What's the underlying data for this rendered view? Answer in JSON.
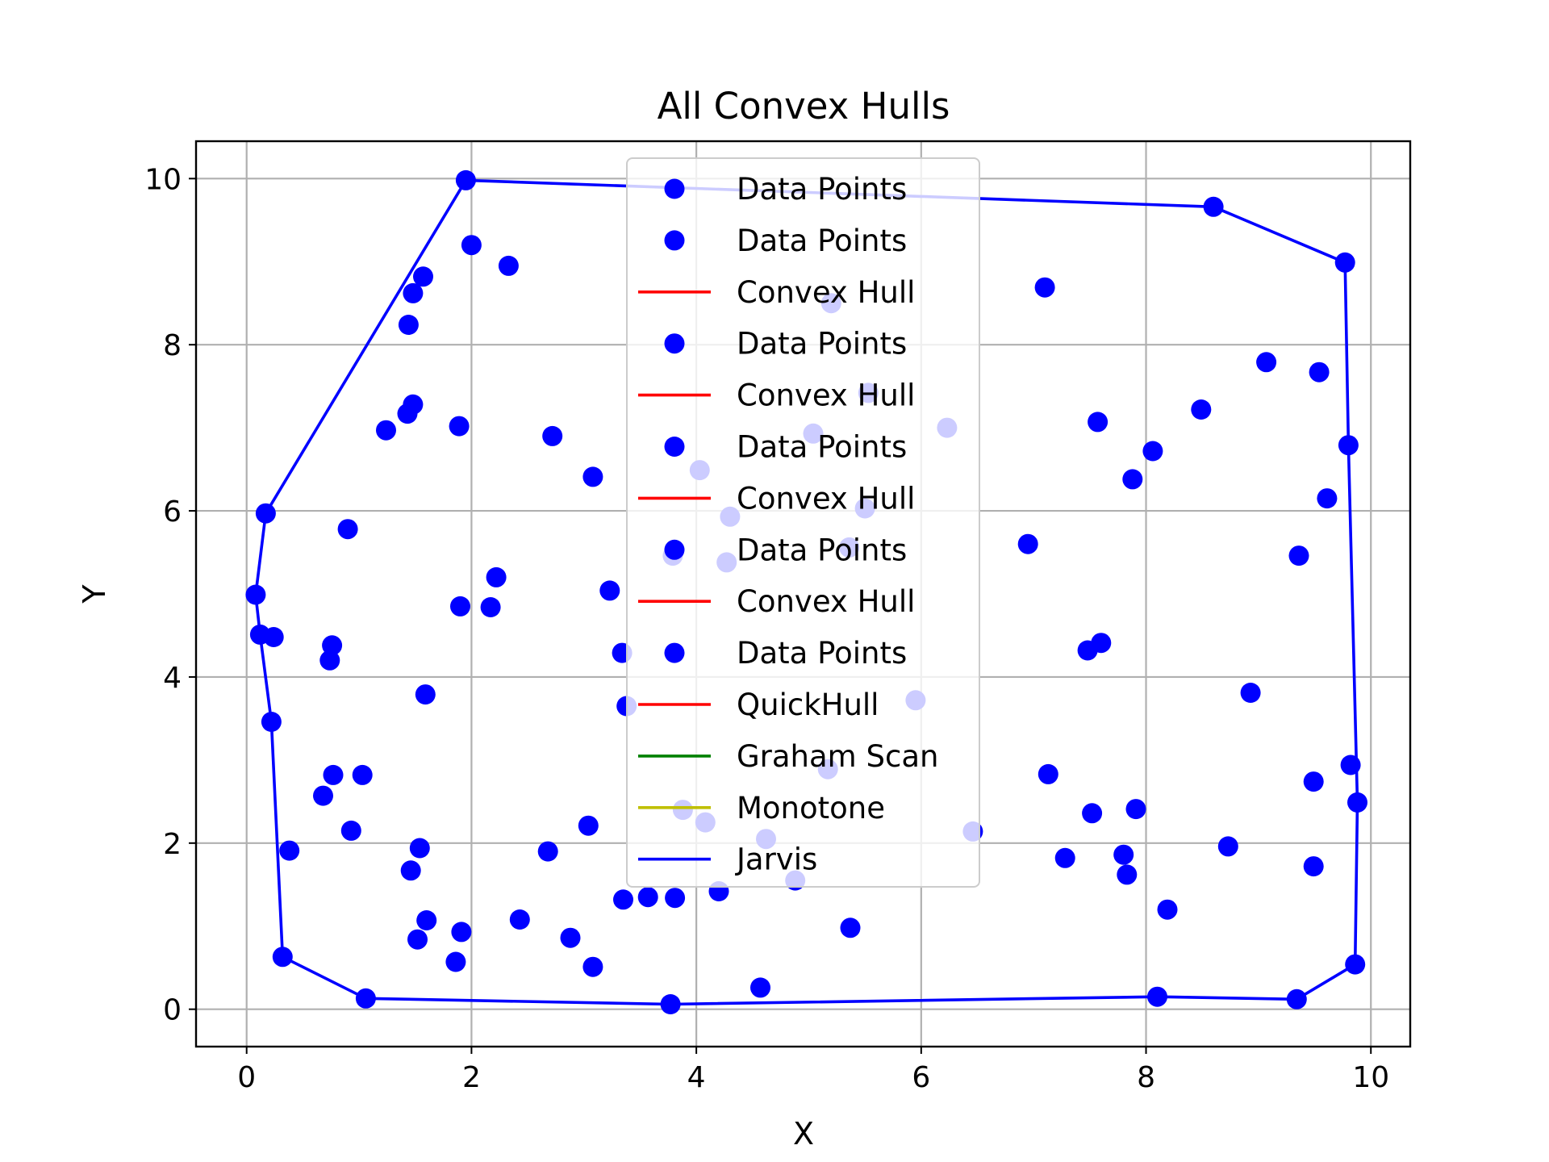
{
  "chart_data": {
    "type": "scatter",
    "title": "All Convex Hulls",
    "xlabel": "X",
    "ylabel": "Y",
    "xlim": [
      -0.45,
      10.35
    ],
    "ylim": [
      -0.45,
      10.45
    ],
    "grid": true,
    "legend_placement": "upper center",
    "xticks": [
      "0",
      "2",
      "4",
      "6",
      "8",
      "10"
    ],
    "yticks": [
      "0",
      "2",
      "4",
      "6",
      "8",
      "10"
    ],
    "colors": {
      "points": "#0000ff",
      "quickhull": "#ff0000",
      "graham": "#008000",
      "monotone": "#bfbf00",
      "jarvis": "#0000ff"
    },
    "points": [
      [
        1.95,
        9.98
      ],
      [
        2.0,
        9.2
      ],
      [
        2.33,
        8.95
      ],
      [
        1.57,
        8.82
      ],
      [
        1.48,
        8.62
      ],
      [
        1.44,
        8.24
      ],
      [
        1.48,
        7.28
      ],
      [
        1.43,
        7.17
      ],
      [
        1.24,
        6.97
      ],
      [
        1.89,
        7.02
      ],
      [
        2.72,
        6.9
      ],
      [
        3.08,
        6.41
      ],
      [
        0.17,
        5.97
      ],
      [
        0.9,
        5.78
      ],
      [
        0.08,
        4.99
      ],
      [
        0.12,
        4.51
      ],
      [
        0.24,
        4.48
      ],
      [
        0.76,
        4.38
      ],
      [
        0.74,
        4.2
      ],
      [
        1.59,
        3.79
      ],
      [
        0.22,
        3.46
      ],
      [
        1.9,
        4.85
      ],
      [
        2.17,
        4.84
      ],
      [
        2.22,
        5.2
      ],
      [
        3.23,
        5.04
      ],
      [
        3.34,
        4.29
      ],
      [
        3.38,
        3.65
      ],
      [
        0.77,
        2.82
      ],
      [
        1.03,
        2.82
      ],
      [
        0.68,
        2.57
      ],
      [
        0.93,
        2.15
      ],
      [
        0.38,
        1.91
      ],
      [
        1.54,
        1.94
      ],
      [
        1.46,
        1.67
      ],
      [
        1.6,
        1.07
      ],
      [
        1.52,
        0.84
      ],
      [
        1.91,
        0.93
      ],
      [
        1.86,
        0.57
      ],
      [
        0.32,
        0.63
      ],
      [
        1.06,
        0.13
      ],
      [
        2.43,
        1.08
      ],
      [
        2.68,
        1.9
      ],
      [
        3.04,
        2.21
      ],
      [
        2.88,
        0.86
      ],
      [
        3.08,
        0.51
      ],
      [
        3.35,
        1.32
      ],
      [
        3.57,
        1.35
      ],
      [
        3.81,
        1.34
      ],
      [
        3.77,
        0.06
      ],
      [
        4.2,
        1.42
      ],
      [
        4.57,
        0.26
      ],
      [
        4.88,
        1.55
      ],
      [
        5.37,
        0.98
      ],
      [
        5.2,
        8.5
      ],
      [
        5.53,
        7.42
      ],
      [
        5.04,
        6.93
      ],
      [
        6.23,
        7.0
      ],
      [
        4.03,
        6.49
      ],
      [
        4.3,
        5.93
      ],
      [
        5.5,
        6.03
      ],
      [
        3.79,
        5.46
      ],
      [
        4.27,
        5.38
      ],
      [
        5.36,
        5.56
      ],
      [
        5.95,
        3.72
      ],
      [
        5.17,
        2.89
      ],
      [
        3.88,
        2.4
      ],
      [
        4.08,
        2.25
      ],
      [
        4.62,
        2.05
      ],
      [
        6.46,
        2.14
      ],
      [
        7.1,
        8.69
      ],
      [
        6.95,
        5.6
      ],
      [
        7.57,
        7.07
      ],
      [
        7.88,
        6.38
      ],
      [
        8.06,
        6.72
      ],
      [
        8.49,
        7.22
      ],
      [
        8.6,
        9.66
      ],
      [
        9.07,
        7.79
      ],
      [
        9.54,
        7.67
      ],
      [
        9.77,
        8.99
      ],
      [
        9.8,
        6.79
      ],
      [
        9.61,
        6.15
      ],
      [
        9.36,
        5.46
      ],
      [
        7.48,
        4.32
      ],
      [
        7.6,
        4.41
      ],
      [
        8.93,
        3.81
      ],
      [
        7.13,
        2.83
      ],
      [
        7.28,
        1.82
      ],
      [
        7.52,
        2.36
      ],
      [
        7.91,
        2.41
      ],
      [
        7.8,
        1.86
      ],
      [
        7.83,
        1.62
      ],
      [
        8.73,
        1.96
      ],
      [
        8.19,
        1.2
      ],
      [
        8.1,
        0.15
      ],
      [
        9.34,
        0.12
      ],
      [
        9.49,
        2.74
      ],
      [
        9.49,
        1.72
      ],
      [
        9.82,
        2.94
      ],
      [
        9.88,
        2.49
      ],
      [
        9.86,
        0.54
      ]
    ],
    "hull": [
      [
        1.95,
        9.98
      ],
      [
        8.6,
        9.66
      ],
      [
        9.77,
        8.99
      ],
      [
        9.8,
        6.79
      ],
      [
        9.88,
        2.49
      ],
      [
        9.86,
        0.54
      ],
      [
        9.34,
        0.12
      ],
      [
        8.1,
        0.15
      ],
      [
        3.77,
        0.06
      ],
      [
        1.06,
        0.13
      ],
      [
        0.32,
        0.63
      ],
      [
        0.22,
        3.46
      ],
      [
        0.12,
        4.51
      ],
      [
        0.08,
        4.99
      ],
      [
        0.17,
        5.97
      ],
      [
        1.95,
        9.98
      ]
    ],
    "legend": [
      {
        "label": "Data Points",
        "kind": "marker",
        "color": "#0000ff"
      },
      {
        "label": "Data Points",
        "kind": "marker",
        "color": "#0000ff"
      },
      {
        "label": "Convex Hull",
        "kind": "line",
        "color": "#ff0000"
      },
      {
        "label": "Data Points",
        "kind": "marker",
        "color": "#0000ff"
      },
      {
        "label": "Convex Hull",
        "kind": "line",
        "color": "#ff0000"
      },
      {
        "label": "Data Points",
        "kind": "marker",
        "color": "#0000ff"
      },
      {
        "label": "Convex Hull",
        "kind": "line",
        "color": "#ff0000"
      },
      {
        "label": "Data Points",
        "kind": "marker",
        "color": "#0000ff"
      },
      {
        "label": "Convex Hull",
        "kind": "line",
        "color": "#ff0000"
      },
      {
        "label": "Data Points",
        "kind": "marker",
        "color": "#0000ff"
      },
      {
        "label": "QuickHull",
        "kind": "line",
        "color": "#ff0000"
      },
      {
        "label": "Graham Scan",
        "kind": "line",
        "color": "#008000"
      },
      {
        "label": "Monotone",
        "kind": "line",
        "color": "#bfbf00"
      },
      {
        "label": "Jarvis",
        "kind": "line",
        "color": "#0000ff"
      }
    ]
  }
}
